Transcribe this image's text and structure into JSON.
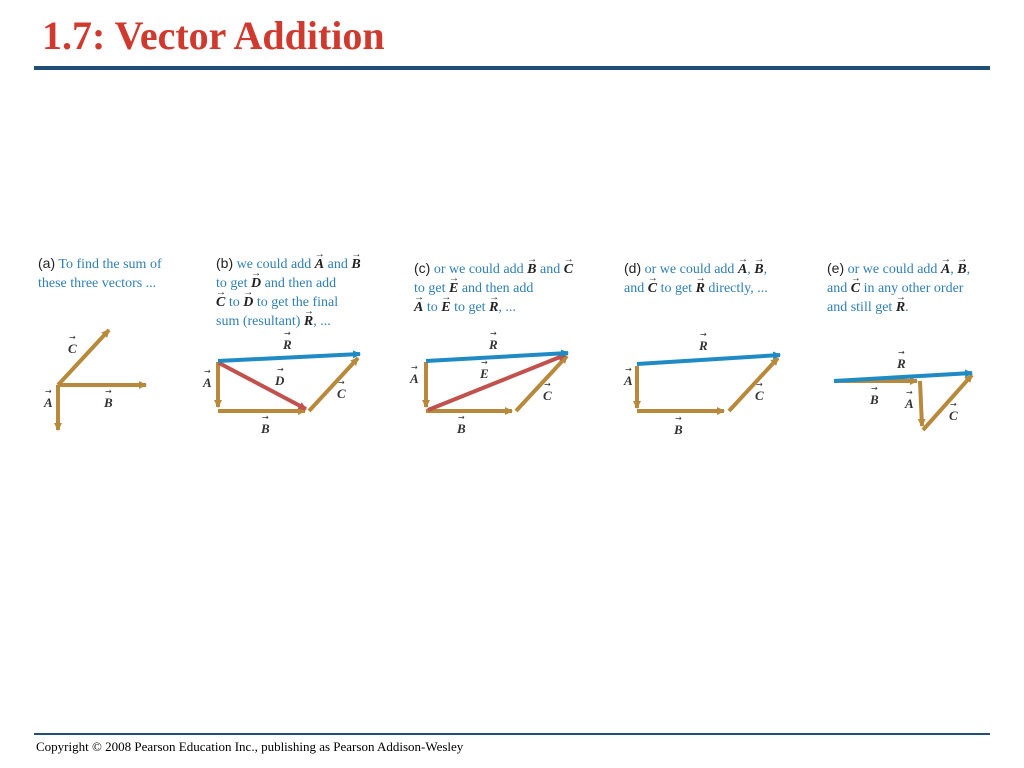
{
  "slide": {
    "title": "1.7: Vector Addition",
    "footer": "Copyright © 2008 Pearson Education Inc., publishing as Pearson Addison-Wesley"
  },
  "colors": {
    "title": "#d03a2e",
    "rule": "#1f4e79",
    "caption": "#2f7fb5",
    "vector_gold": "#b8893a",
    "vector_blue": "#1f8bc4",
    "vector_red": "#c2504d"
  },
  "panels": {
    "a": {
      "part": "(a)",
      "t1": "To find the sum of",
      "t2": "these three vectors ...",
      "vA": "A",
      "vB": "B",
      "vC": "C"
    },
    "b": {
      "part": "(b)",
      "t1": "we could add",
      "v1": "A",
      "t2": "and",
      "v2": "B",
      "t3": "to get",
      "v3": "D",
      "t4": "and then add",
      "v4": "C",
      "t5": "to",
      "v5": "D",
      "t6": "to get the final",
      "t7": "sum (resultant)",
      "v6": "R",
      "t8": ", ...",
      "vR": "R",
      "vA": "A",
      "vD": "D",
      "vC": "C",
      "vB": "B"
    },
    "c": {
      "part": "(c)",
      "t1": "or we could add",
      "v1": "B",
      "t2": "and",
      "v2": "C",
      "t3": "to get",
      "v3": "E",
      "t4": "and then add",
      "v4": "A",
      "t5": "to",
      "v5": "E",
      "t6": "to get",
      "v6": "R",
      "t7": ", ...",
      "vR": "R",
      "vA": "A",
      "vE": "E",
      "vC": "C",
      "vB": "B"
    },
    "d": {
      "part": "(d)",
      "t1": "or we could add",
      "v1": "A",
      "t2": ",",
      "v2": "B",
      "t3": ",",
      "t4": "and",
      "v3": "C",
      "t5": "to get",
      "v4": "R",
      "t6": "directly, ...",
      "vR": "R",
      "vA": "A",
      "vC": "C",
      "vB": "B"
    },
    "e": {
      "part": "(e)",
      "t1": "or we could add",
      "v1": "A",
      "t2": ",",
      "v2": "B",
      "t3": ",",
      "t4": "and",
      "v3": "C",
      "t5": "in any other order",
      "t6": "and still get",
      "v4": "R",
      "t7": ".",
      "vR": "R",
      "vB": "B",
      "vA": "A",
      "vC": "C"
    }
  }
}
